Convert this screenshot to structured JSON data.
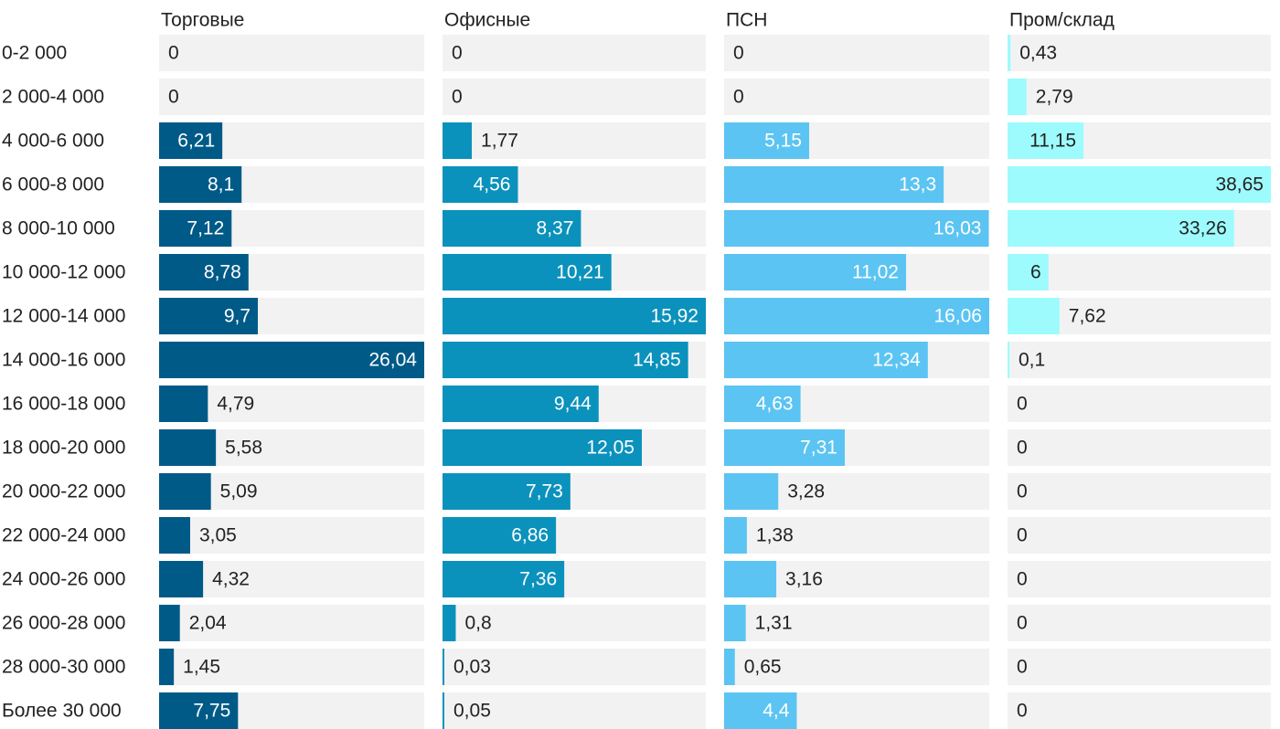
{
  "chart_data": {
    "type": "bar",
    "orientation": "horizontal",
    "layout": "small-multiples",
    "categories": [
      "0-2 000",
      "2 000-4 000",
      "4 000-6 000",
      "6 000-8 000",
      "8 000-10 000",
      "10 000-12 000",
      "12 000-14 000",
      "14 000-16 000",
      "16 000-18 000",
      "18 000-20 000",
      "20 000-22 000",
      "22 000-24 000",
      "24 000-26 000",
      "26 000-28 000",
      "28 000-30 000",
      "Более 30 000"
    ],
    "series": [
      {
        "name": "Торговые",
        "color": "#005a87",
        "xlim": [
          0,
          26.04
        ],
        "values": [
          0,
          0,
          6.21,
          8.1,
          7.12,
          8.78,
          9.7,
          26.04,
          4.79,
          5.58,
          5.09,
          3.05,
          4.32,
          2.04,
          1.45,
          7.75
        ],
        "labels": [
          "0",
          "0",
          "6,21",
          "8,1",
          "7,12",
          "8,78",
          "9,7",
          "26,04",
          "4,79",
          "5,58",
          "5,09",
          "3,05",
          "4,32",
          "2,04",
          "1,45",
          "7,75"
        ]
      },
      {
        "name": "Офисные",
        "color": "#0b92bc",
        "xlim": [
          0,
          15.92
        ],
        "values": [
          0,
          0,
          1.77,
          4.56,
          8.37,
          10.21,
          15.92,
          14.85,
          9.44,
          12.05,
          7.73,
          6.86,
          7.36,
          0.8,
          0.03,
          0.05
        ],
        "labels": [
          "0",
          "0",
          "1,77",
          "4,56",
          "8,37",
          "10,21",
          "15,92",
          "14,85",
          "9,44",
          "12,05",
          "7,73",
          "6,86",
          "7,36",
          "0,8",
          "0,03",
          "0,05"
        ]
      },
      {
        "name": "ПСН",
        "color": "#5cc4f2",
        "xlim": [
          0,
          16.06
        ],
        "values": [
          0,
          0,
          5.15,
          13.3,
          16.03,
          11.02,
          16.06,
          12.34,
          4.63,
          7.31,
          3.28,
          1.38,
          3.16,
          1.31,
          0.65,
          4.4
        ],
        "labels": [
          "0",
          "0",
          "5,15",
          "13,3",
          "16,03",
          "11,02",
          "16,06",
          "12,34",
          "4,63",
          "7,31",
          "3,28",
          "1,38",
          "3,16",
          "1,31",
          "0,65",
          "4,4"
        ]
      },
      {
        "name": "Пром/склад",
        "color": "#9dfbfd",
        "xlim": [
          0,
          38.65
        ],
        "values": [
          0.43,
          2.79,
          11.15,
          38.65,
          33.26,
          6,
          7.62,
          0.1,
          0,
          0,
          0,
          0,
          0,
          0,
          0,
          0
        ],
        "labels": [
          "0,43",
          "2,79",
          "11,15",
          "38,65",
          "33,26",
          "6",
          "7,62",
          "0,1",
          "0",
          "0",
          "0",
          "0",
          "0",
          "0",
          "0",
          "0"
        ]
      }
    ],
    "track_color": "#f2f2f2",
    "text_color": "#222222",
    "inside_label_color": "#ffffff"
  }
}
